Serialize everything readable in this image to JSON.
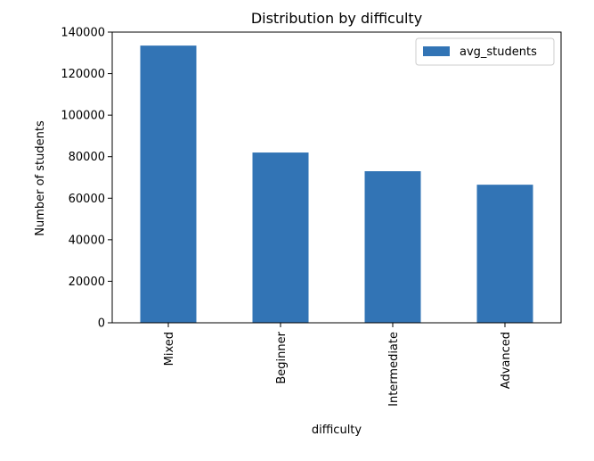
{
  "chart_data": {
    "type": "bar",
    "title": "Distribution by difficulty",
    "xlabel": "difficulty",
    "ylabel": "Number of students",
    "categories": [
      "Mixed",
      "Beginner",
      "Intermediate",
      "Advanced"
    ],
    "series": [
      {
        "name": "avg_students",
        "color": "#3274b5",
        "values": [
          133500,
          82000,
          73000,
          66500
        ]
      }
    ],
    "ylim": [
      0,
      140000
    ],
    "yticks": [
      0,
      20000,
      40000,
      60000,
      80000,
      100000,
      120000,
      140000
    ],
    "legend_position": "top-right",
    "grid": false
  }
}
